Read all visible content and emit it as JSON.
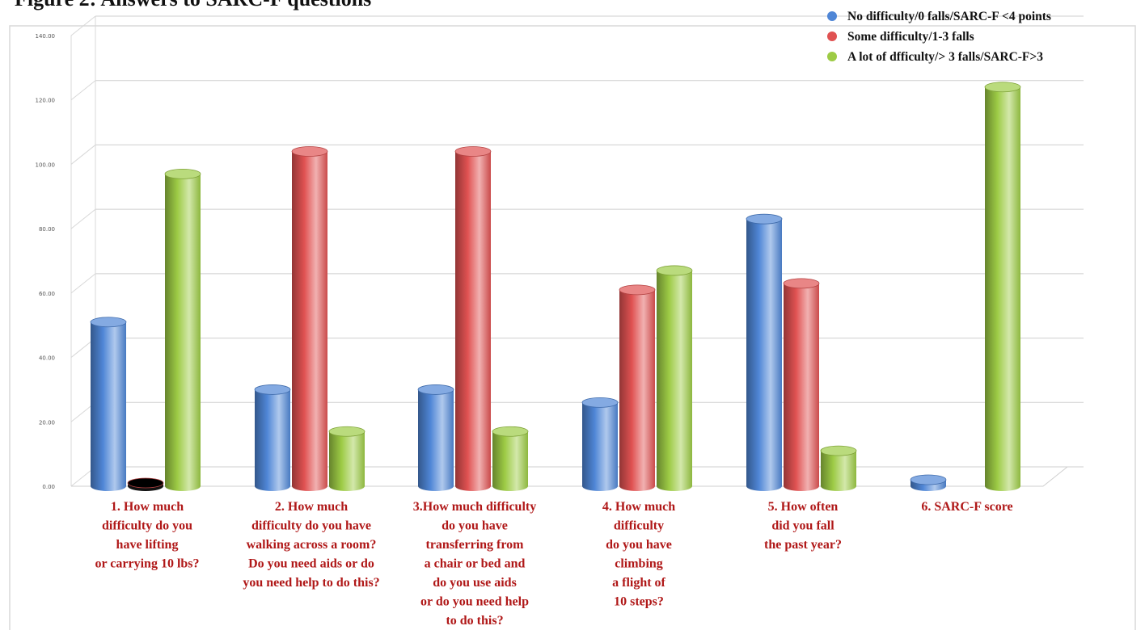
{
  "title": "Figure 2: Answers to SARC-F questions",
  "chart_data": {
    "type": "bar",
    "categories": [
      [
        "1. How much",
        "difficulty do you",
        "have lifting",
        "or carrying 10 lbs?"
      ],
      [
        "2. How much",
        "difficulty do you have",
        "walking across a room?",
        "Do you need aids or do",
        "you need help to do this?"
      ],
      [
        "3.How much  difficulty",
        "do you have",
        "transferring from",
        "a chair or bed and",
        "do you use aids",
        "or do you need help",
        "to do this?"
      ],
      [
        "4. How much",
        "difficulty",
        "do you have",
        "climbing",
        "a flight of",
        "10 steps?"
      ],
      [
        "5. How often",
        "did you fall",
        "the past year?"
      ],
      [
        "6. SARC-F score"
      ]
    ],
    "series": [
      {
        "name": "No difficulty/0 falls/SARC-F <4 points",
        "color": "#4f86d6",
        "values": [
          51,
          30,
          30,
          26,
          83,
          2
        ]
      },
      {
        "name": "Some difficulty/1-3 falls",
        "color": "#e05252",
        "values": [
          1,
          104,
          104,
          61,
          63,
          null
        ]
      },
      {
        "name": "A lot of dfficulty/> 3 falls/SARC-F>3",
        "color": "#9dcb45",
        "values": [
          97,
          17,
          17,
          67,
          11,
          124
        ]
      }
    ],
    "ylim": [
      0,
      140
    ],
    "yticks": [
      "0.00",
      "20.00",
      "40.00",
      "60.00",
      "80.00",
      "100.00",
      "120.00",
      "140.00"
    ],
    "grid": true,
    "legend": "top-right"
  }
}
